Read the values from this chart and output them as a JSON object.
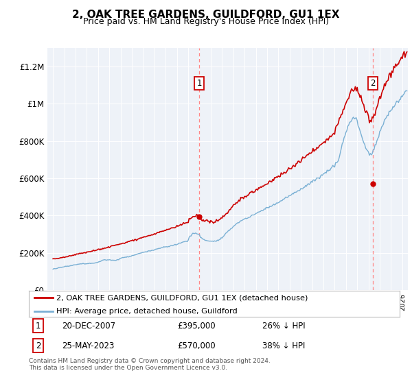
{
  "title": "2, OAK TREE GARDENS, GUILDFORD, GU1 1EX",
  "subtitle": "Price paid vs. HM Land Registry's House Price Index (HPI)",
  "ylabel_ticks": [
    "£0",
    "£200K",
    "£400K",
    "£600K",
    "£800K",
    "£1M",
    "£1.2M"
  ],
  "ytick_vals": [
    0,
    200000,
    400000,
    600000,
    800000,
    1000000,
    1200000
  ],
  "ylim": [
    0,
    1300000
  ],
  "xlim_start": 1994.5,
  "xlim_end": 2026.5,
  "purchase1_x": 2007.97,
  "purchase1_y": 395000,
  "purchase1_label": "1",
  "purchase1_date": "20-DEC-2007",
  "purchase1_price": "£395,000",
  "purchase1_hpi": "26% ↓ HPI",
  "purchase2_x": 2023.39,
  "purchase2_y": 570000,
  "purchase2_label": "2",
  "purchase2_date": "25-MAY-2023",
  "purchase2_price": "£570,000",
  "purchase2_hpi": "38% ↓ HPI",
  "hpi_color": "#7ab0d4",
  "hpi_fill_color": "#d0e8f5",
  "price_color": "#cc0000",
  "vline_color": "#ff8888",
  "background_color": "#eef2f8",
  "legend_label_price": "2, OAK TREE GARDENS, GUILDFORD, GU1 1EX (detached house)",
  "legend_label_hpi": "HPI: Average price, detached house, Guildford",
  "footer": "Contains HM Land Registry data © Crown copyright and database right 2024.\nThis data is licensed under the Open Government Licence v3.0.",
  "title_fontsize": 11,
  "subtitle_fontsize": 9
}
